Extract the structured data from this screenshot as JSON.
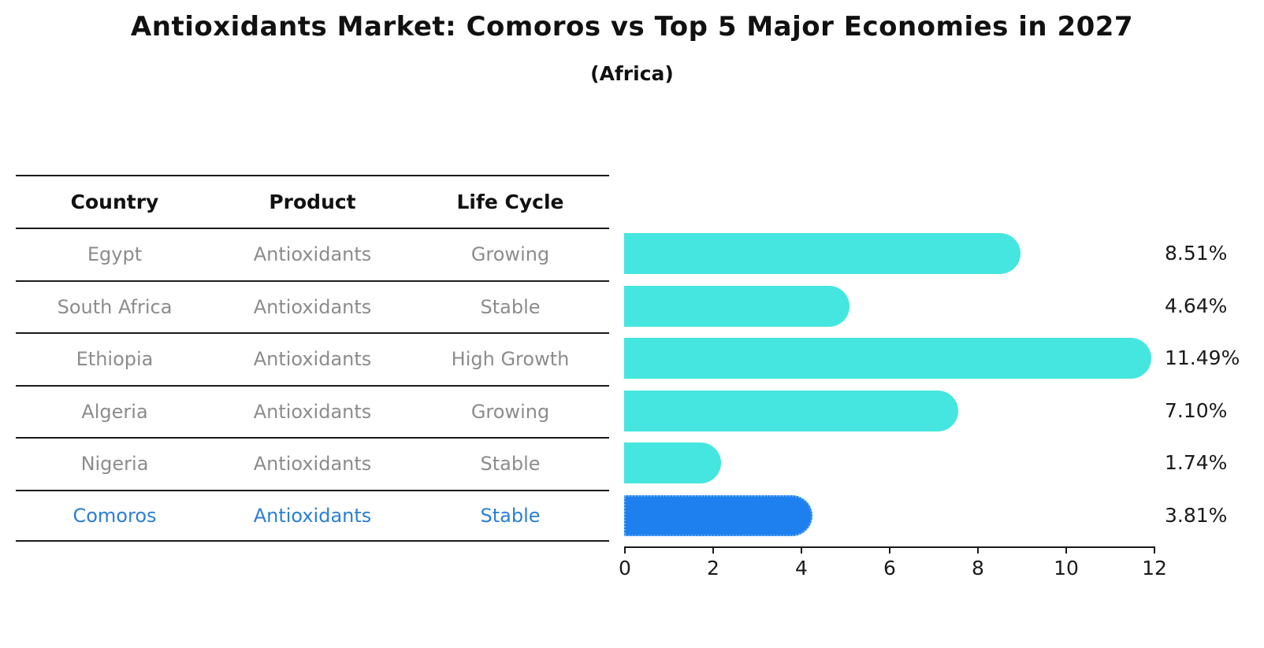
{
  "title": "Antioxidants Market: Comoros vs Top 5 Major Economies in 2027",
  "subtitle": "(Africa)",
  "table": {
    "headers": [
      "Country",
      "Product",
      "Life Cycle"
    ],
    "rows": [
      {
        "country": "Egypt",
        "product": "Antioxidants",
        "life_cycle": "Growing",
        "highlight": false
      },
      {
        "country": "South Africa",
        "product": "Antioxidants",
        "life_cycle": "Stable",
        "highlight": false
      },
      {
        "country": "Ethiopia",
        "product": "Antioxidants",
        "life_cycle": "High Growth",
        "highlight": false
      },
      {
        "country": "Algeria",
        "product": "Antioxidants",
        "life_cycle": "Growing",
        "highlight": false
      },
      {
        "country": "Nigeria",
        "product": "Antioxidants",
        "life_cycle": "Stable",
        "highlight": false
      },
      {
        "country": "Comoros",
        "product": "Antioxidants",
        "life_cycle": "Stable",
        "highlight": true
      }
    ]
  },
  "chart_data": {
    "type": "bar",
    "orientation": "horizontal",
    "title": "Antioxidants Market: Comoros vs Top 5 Major Economies in 2027",
    "subtitle": "(Africa)",
    "categories": [
      "Egypt",
      "South Africa",
      "Ethiopia",
      "Algeria",
      "Nigeria",
      "Comoros"
    ],
    "values": [
      8.51,
      4.64,
      11.49,
      7.1,
      1.74,
      3.81
    ],
    "value_labels": [
      "8.51%",
      "4.64%",
      "11.49%",
      "7.10%",
      "1.74%",
      "3.81%"
    ],
    "xlim": [
      0,
      12
    ],
    "x_ticks": [
      "0",
      "2",
      "4",
      "6",
      "8",
      "10",
      "12"
    ],
    "highlight_index": 5,
    "grid": false,
    "legend": "none"
  },
  "colors": {
    "bar_default": "#44e6df",
    "bar_highlight": "#1e80ee",
    "bar_highlight_border": "#5fb0f7",
    "highlight_text": "#2a7fd4",
    "cell_text": "#8c8c8c",
    "header_text": "#111111",
    "axis": "#1a1a1a"
  }
}
